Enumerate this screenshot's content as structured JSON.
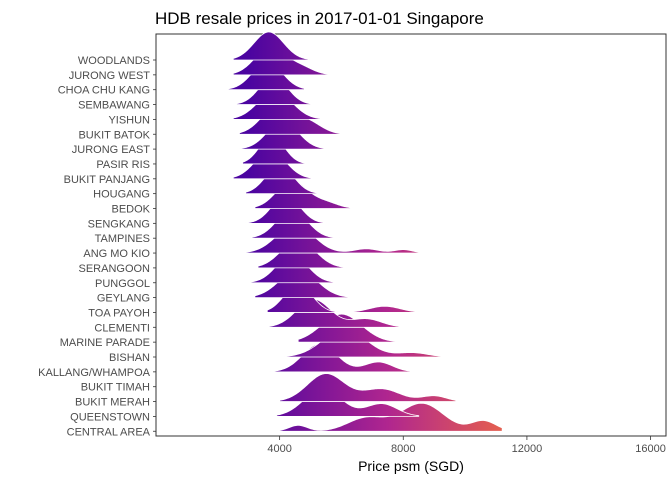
{
  "chart_data": {
    "type": "ridgeline",
    "title": "HDB resale prices in 2017-01-01 Singapore",
    "xlabel": "Price psm (SGD)",
    "ylabel": "",
    "xlim": [
      0,
      16500
    ],
    "xticks": [
      4000,
      8000,
      12000,
      16000
    ],
    "xtick_labels": [
      "4000",
      "8000",
      "12000",
      "16000"
    ],
    "grid": false,
    "color_scale": {
      "low_value": 3000,
      "high_value": 12000,
      "low_color": "#4b04a0",
      "mid_color": "#b0268f",
      "high_color": "#f06b41"
    },
    "series": [
      {
        "name": "WOODLANDS",
        "min": 2500,
        "max": 5000,
        "peaks": [
          {
            "center": 3650,
            "sd": 480,
            "h": 1.0
          }
        ]
      },
      {
        "name": "JURONG WEST",
        "min": 2500,
        "max": 5600,
        "peaks": [
          {
            "center": 3700,
            "sd": 500,
            "h": 1.0
          },
          {
            "center": 4700,
            "sd": 400,
            "h": 0.25
          }
        ]
      },
      {
        "name": "CHOA CHU KANG",
        "min": 2300,
        "max": 4800,
        "peaks": [
          {
            "center": 3600,
            "sd": 480,
            "h": 1.0
          }
        ]
      },
      {
        "name": "SEMBAWANG",
        "min": 2500,
        "max": 5000,
        "peaks": [
          {
            "center": 3800,
            "sd": 450,
            "h": 1.0
          }
        ]
      },
      {
        "name": "YISHUN",
        "min": 2500,
        "max": 5400,
        "peaks": [
          {
            "center": 3850,
            "sd": 550,
            "h": 1.0
          }
        ]
      },
      {
        "name": "BUKIT BATOK",
        "min": 2700,
        "max": 6000,
        "peaks": [
          {
            "center": 3900,
            "sd": 500,
            "h": 1.0
          },
          {
            "center": 4900,
            "sd": 450,
            "h": 0.45
          }
        ]
      },
      {
        "name": "JURONG EAST",
        "min": 2700,
        "max": 5600,
        "peaks": [
          {
            "center": 4100,
            "sd": 500,
            "h": 1.0
          }
        ]
      },
      {
        "name": "PASIR RIS",
        "min": 2800,
        "max": 4900,
        "peaks": [
          {
            "center": 3750,
            "sd": 400,
            "h": 1.0
          }
        ]
      },
      {
        "name": "BUKIT PANJANG",
        "min": 2500,
        "max": 5600,
        "peaks": [
          {
            "center": 3700,
            "sd": 500,
            "h": 1.0
          }
        ]
      },
      {
        "name": "HOUGANG",
        "min": 2900,
        "max": 5400,
        "peaks": [
          {
            "center": 4000,
            "sd": 450,
            "h": 1.0
          }
        ]
      },
      {
        "name": "BEDOK",
        "min": 3200,
        "max": 7400,
        "peaks": [
          {
            "center": 4400,
            "sd": 500,
            "h": 1.0
          },
          {
            "center": 5500,
            "sd": 400,
            "h": 0.2
          }
        ]
      },
      {
        "name": "SENGKANG",
        "min": 2800,
        "max": 6500,
        "peaks": [
          {
            "center": 4200,
            "sd": 450,
            "h": 1.0
          }
        ]
      },
      {
        "name": "TAMPINES",
        "min": 3100,
        "max": 7300,
        "peaks": [
          {
            "center": 4400,
            "sd": 500,
            "h": 1.0
          }
        ]
      },
      {
        "name": "ANG MO KIO",
        "min": 2900,
        "max": 9300,
        "peaks": [
          {
            "center": 4500,
            "sd": 600,
            "h": 1.0
          },
          {
            "center": 6800,
            "sd": 400,
            "h": 0.15
          },
          {
            "center": 8000,
            "sd": 300,
            "h": 0.12
          }
        ]
      },
      {
        "name": "SERANGOON",
        "min": 3300,
        "max": 6400,
        "peaks": [
          {
            "center": 4600,
            "sd": 550,
            "h": 1.0
          }
        ]
      },
      {
        "name": "PUNGGOL",
        "min": 3000,
        "max": 6200,
        "peaks": [
          {
            "center": 4400,
            "sd": 500,
            "h": 1.0
          }
        ]
      },
      {
        "name": "GEYLANG",
        "min": 3200,
        "max": 8000,
        "peaks": [
          {
            "center": 4600,
            "sd": 600,
            "h": 1.0
          }
        ]
      },
      {
        "name": "TOA PAYOH",
        "min": 3600,
        "max": 9700,
        "peaks": [
          {
            "center": 4600,
            "sd": 450,
            "h": 1.0
          },
          {
            "center": 7400,
            "sd": 500,
            "h": 0.22
          }
        ]
      },
      {
        "name": "CLEMENTI",
        "min": 3200,
        "max": 8000,
        "peaks": [
          {
            "center": 5100,
            "sd": 550,
            "h": 1.0
          },
          {
            "center": 6800,
            "sd": 500,
            "h": 0.3
          }
        ]
      },
      {
        "name": "MARINE PARADE",
        "min": 4600,
        "max": 7800,
        "peaks": [
          {
            "center": 6000,
            "sd": 650,
            "h": 1.0
          }
        ]
      },
      {
        "name": "BISHAN",
        "min": 3200,
        "max": 9400,
        "peaks": [
          {
            "center": 6100,
            "sd": 700,
            "h": 1.0
          },
          {
            "center": 8300,
            "sd": 500,
            "h": 0.15
          }
        ]
      },
      {
        "name": "KALLANG/WHAMPOA",
        "min": 3600,
        "max": 8800,
        "peaks": [
          {
            "center": 5300,
            "sd": 550,
            "h": 1.0
          },
          {
            "center": 7200,
            "sd": 450,
            "h": 0.35
          }
        ]
      },
      {
        "name": "BUKIT TIMAH",
        "min": 0,
        "max": 0,
        "peaks": []
      },
      {
        "name": "BUKIT MERAH",
        "min": 4000,
        "max": 9700,
        "peaks": [
          {
            "center": 5500,
            "sd": 600,
            "h": 1.0
          },
          {
            "center": 7300,
            "sd": 600,
            "h": 0.45
          },
          {
            "center": 9000,
            "sd": 400,
            "h": 0.2
          }
        ]
      },
      {
        "name": "QUEENSTOWN",
        "min": 3900,
        "max": 8500,
        "peaks": [
          {
            "center": 5400,
            "sd": 600,
            "h": 1.0
          },
          {
            "center": 7300,
            "sd": 500,
            "h": 0.45
          }
        ]
      },
      {
        "name": "CENTRAL AREA",
        "min": 3600,
        "max": 11200,
        "peaks": [
          {
            "center": 4600,
            "sd": 300,
            "h": 0.2
          },
          {
            "center": 6800,
            "sd": 600,
            "h": 0.45
          },
          {
            "center": 8600,
            "sd": 700,
            "h": 0.95
          },
          {
            "center": 10600,
            "sd": 400,
            "h": 0.35
          }
        ]
      }
    ]
  }
}
